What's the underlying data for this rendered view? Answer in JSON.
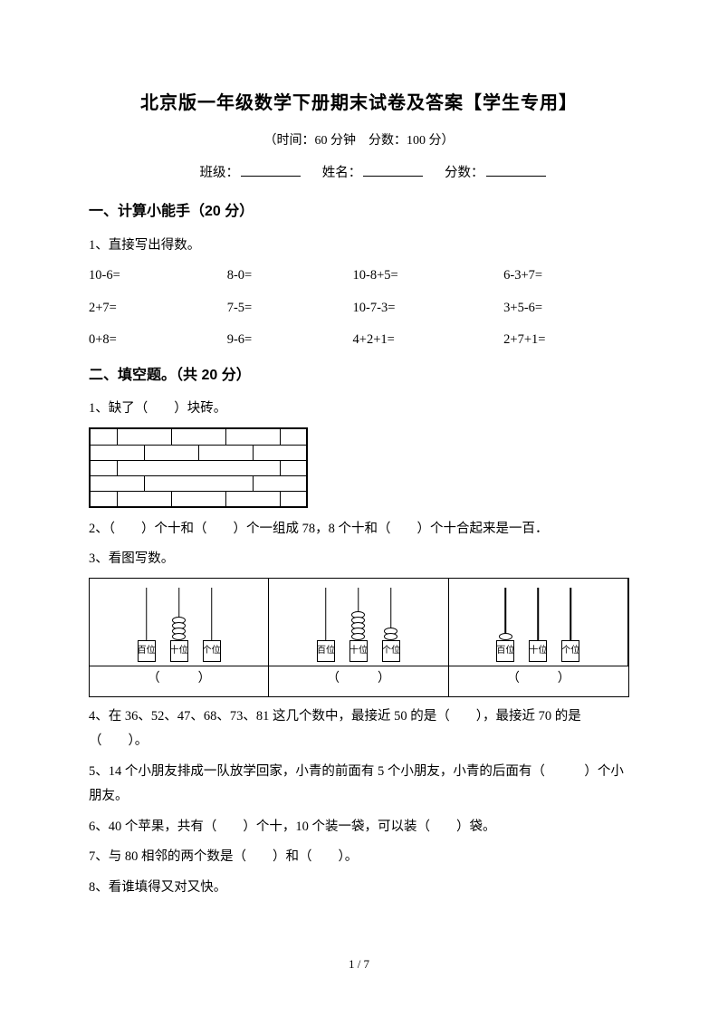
{
  "title": "北京版一年级数学下册期末试卷及答案【学生专用】",
  "subtitle": "（时间：60 分钟　分数：100 分）",
  "info": {
    "class_label": "班级：",
    "name_label": "姓名：",
    "score_label": "分数："
  },
  "section1": {
    "header": "一、计算小能手（20 分）",
    "q1_label": "1、直接写出得数。",
    "grid": [
      [
        "10-6=",
        "8-0=",
        "10-8+5=",
        "6-3+7="
      ],
      [
        "2+7=",
        "7-5=",
        "10-7-3=",
        "3+5-6="
      ],
      [
        "0+8=",
        "9-6=",
        "4+2+1=",
        "2+7+1="
      ]
    ]
  },
  "section2": {
    "header": "二、填空题。（共 20 分）",
    "q1": "1、缺了（　　）块砖。",
    "q2": "2、（　　）个十和（　　）个一组成 78，8 个十和（　　）个十合起来是一百．",
    "q3_label": "3、看图写数。",
    "abacus": {
      "places": [
        "百位",
        "十位",
        "个位"
      ],
      "place_short": [
        [
          "百",
          "位"
        ],
        [
          "十",
          "位"
        ],
        [
          "个",
          "位"
        ]
      ],
      "cells": [
        {
          "beads": [
            0,
            4,
            0
          ]
        },
        {
          "beads": [
            0,
            5,
            2
          ]
        },
        {
          "beads": [
            1,
            0,
            0
          ]
        }
      ],
      "answer": "（　　　）"
    },
    "q4": "4、在 36、52、47、68、73、81 这几个数中，最接近 50 的是（　　），最接近 70 的是（　　）。",
    "q5": "5、14 个小朋友排成一队放学回家，小青的前面有 5 个小朋友，小青的后面有（　　　）个小朋友。",
    "q6": "6、40 个苹果，共有（　　）个十，10 个装一袋，可以装（　　）袋。",
    "q7": "7、与 80 相邻的两个数是（　　）和（　　）。",
    "q8": "8、看谁填得又对又快。"
  },
  "brick": {
    "rows": [
      [
        "half",
        "full",
        "full",
        "full",
        "half"
      ],
      [
        "full",
        "full",
        "full",
        "full"
      ],
      [
        "half",
        "hole",
        "hole",
        "hole",
        "half-r"
      ],
      [
        "full",
        "hole",
        "hole",
        "full"
      ],
      [
        "half",
        "full",
        "full",
        "full",
        "half"
      ]
    ]
  },
  "footer": "1 / 7"
}
